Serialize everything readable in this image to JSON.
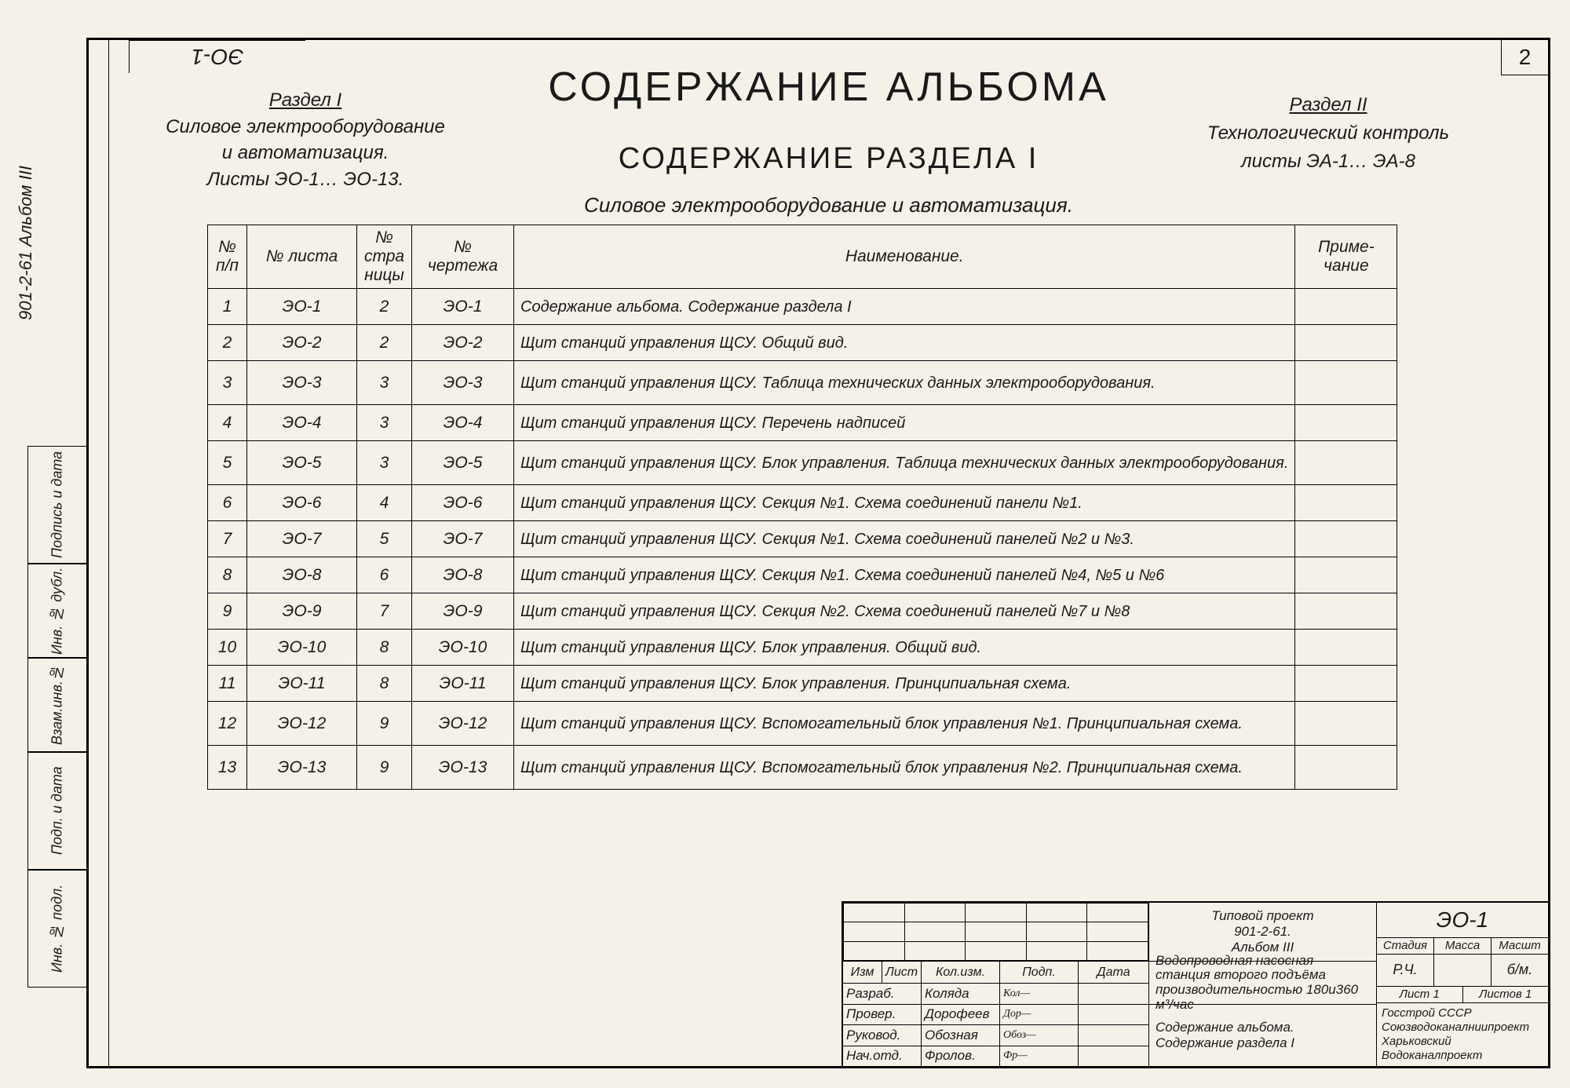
{
  "page_number": "2",
  "sheet_code_rotated": "ЭО-1",
  "left_margin": {
    "project_code": "901-2-61  Альбом III",
    "boxes": [
      {
        "label": "Подпись и дата"
      },
      {
        "label": "Инв. № дубл."
      },
      {
        "label": "Взам.инв.№"
      },
      {
        "label": "Подп. и дата"
      },
      {
        "label": "Инв. № подл."
      }
    ]
  },
  "header": {
    "main_title": "СОДЕРЖАНИЕ  АЛЬБОМА",
    "sub_title": "СОДЕРЖАНИЕ  РАЗДЕЛА  I",
    "section1_title": "Раздел I",
    "section1_line1": "Силовое электрооборудование",
    "section1_line2": "и автоматизация.",
    "section1_line3": "Листы ЭО-1… ЭО-13.",
    "section2_title": "Раздел II",
    "section2_line1": "Технологический  контроль",
    "section2_line2": "листы  ЭА-1… ЭА-8",
    "table_caption": "Силовое электрооборудование  и  автоматизация."
  },
  "table": {
    "columns": {
      "nn": "№\nп/п",
      "sheet": "№\nлиста",
      "page": "№\nстра\nницы",
      "draw": "№\nчертежа",
      "name": "Наименование.",
      "note": "Приме-\nчание"
    },
    "rows": [
      {
        "n": "1",
        "sheet": "ЭО-1",
        "page": "2",
        "draw": "ЭО-1",
        "name": "Содержание альбома. Содержание раздела I"
      },
      {
        "n": "2",
        "sheet": "ЭО-2",
        "page": "2",
        "draw": "ЭО-2",
        "name": "Щит станций управления ЩСУ. Общий вид."
      },
      {
        "n": "3",
        "sheet": "ЭО-3",
        "page": "3",
        "draw": "ЭО-3",
        "name": "Щит станций управления ЩСУ. Таблица технических данных электрооборудования.",
        "tall": true
      },
      {
        "n": "4",
        "sheet": "ЭО-4",
        "page": "3",
        "draw": "ЭО-4",
        "name": "Щит станций управления ЩСУ. Перечень надписей"
      },
      {
        "n": "5",
        "sheet": "ЭО-5",
        "page": "3",
        "draw": "ЭО-5",
        "name": "Щит станций управления ЩСУ. Блок управления.  Таблица технических данных электрооборудования.",
        "tall": true
      },
      {
        "n": "6",
        "sheet": "ЭО-6",
        "page": "4",
        "draw": "ЭО-6",
        "name": "Щит станций управления ЩСУ. Секция №1. Схема соединений панели №1."
      },
      {
        "n": "7",
        "sheet": "ЭО-7",
        "page": "5",
        "draw": "ЭО-7",
        "name": "Щит станций управления ЩСУ. Секция №1. Схема соединений панелей №2 и №3."
      },
      {
        "n": "8",
        "sheet": "ЭО-8",
        "page": "6",
        "draw": "ЭО-8",
        "name": "Щит станций управления ЩСУ. Секция №1. Схема соединений панелей №4, №5 и №6"
      },
      {
        "n": "9",
        "sheet": "ЭО-9",
        "page": "7",
        "draw": "ЭО-9",
        "name": "Щит станций управления ЩСУ. Секция №2. Схема соединений панелей №7 и №8"
      },
      {
        "n": "10",
        "sheet": "ЭО-10",
        "page": "8",
        "draw": "ЭО-10",
        "name": "Щит станций управления ЩСУ. Блок управления. Общий вид."
      },
      {
        "n": "11",
        "sheet": "ЭО-11",
        "page": "8",
        "draw": "ЭО-11",
        "name": "Щит станций управления ЩСУ. Блок управления. Принципиальная схема."
      },
      {
        "n": "12",
        "sheet": "ЭО-12",
        "page": "9",
        "draw": "ЭО-12",
        "name": "Щит станций управления ЩСУ. Вспомогательный блок управления №1. Принципиальная схема.",
        "tall": true
      },
      {
        "n": "13",
        "sheet": "ЭО-13",
        "page": "9",
        "draw": "ЭО-13",
        "name": "Щит станций управления ЩСУ. Вспомогательный блок управления №2. Принципиальная схема.",
        "tall": true
      }
    ]
  },
  "title_block": {
    "left_head": [
      "Изм",
      "Лист",
      "Кол.изм.",
      "Подп.",
      "Дата"
    ],
    "roles": [
      {
        "role": "Разраб.",
        "name": "Коляда",
        "sig": "Кол—"
      },
      {
        "role": "Провер.",
        "name": "Дорофеев",
        "sig": "Дор—"
      },
      {
        "role": "Руковод.",
        "name": "Обозная",
        "sig": "Обоз—"
      },
      {
        "role": "Нач.отд.",
        "name": "Фролов.",
        "sig": "Фр—"
      }
    ],
    "mid": {
      "project": "Типовой проект\n901-2-61.\nАльбом III",
      "object": "Водопроводная насосная станция второго подъёма производительностью 180и360 м³/час",
      "title1": "Содержание альбома.",
      "title2": "Содержание раздела I"
    },
    "right": {
      "doc_code": "ЭО-1",
      "head": [
        "Стадия",
        "Масса",
        "Масшт"
      ],
      "stage": "Р.Ч.",
      "mass": "",
      "scale": "б/м.",
      "sheet_label": "Лист 1",
      "sheets_label": "Листов 1",
      "org": "Госстрой СССР\nСоюзводоканалниипроект\nХарьковский\nВодоканалпроект"
    }
  },
  "colors": {
    "paper": "#f5f1e8",
    "ink": "#1a1a1a",
    "border": "#000000"
  }
}
